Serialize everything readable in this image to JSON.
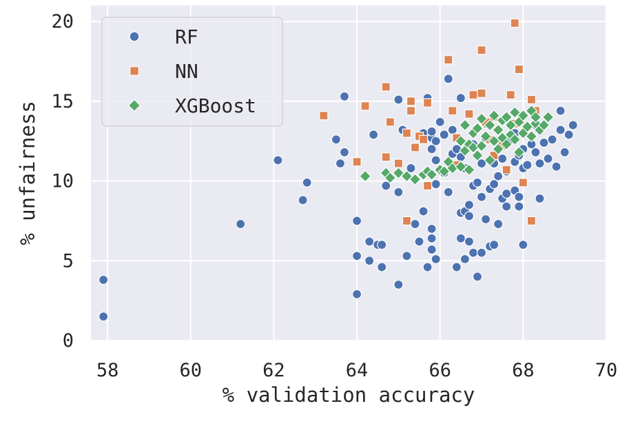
{
  "chart_data": {
    "type": "scatter",
    "xlabel": "% validation accuracy",
    "ylabel": "% unfairness",
    "xlim": [
      57.6,
      70
    ],
    "ylim": [
      0,
      21
    ],
    "xticks": [
      58,
      60,
      62,
      64,
      66,
      68,
      70
    ],
    "yticks": [
      0,
      5,
      10,
      15,
      20
    ],
    "grid": true,
    "legend_position": "top-left",
    "series": [
      {
        "name": "RF",
        "marker": "circle",
        "color": "#4c72b0",
        "points": [
          [
            57.9,
            3.8
          ],
          [
            57.9,
            1.5
          ],
          [
            61.2,
            7.3
          ],
          [
            62.1,
            11.3
          ],
          [
            62.8,
            9.9
          ],
          [
            62.7,
            8.8
          ],
          [
            63.5,
            12.6
          ],
          [
            63.6,
            11.1
          ],
          [
            63.7,
            15.3
          ],
          [
            63.7,
            11.8
          ],
          [
            64.0,
            7.5
          ],
          [
            64.0,
            5.3
          ],
          [
            64.0,
            2.9
          ],
          [
            64.3,
            6.2
          ],
          [
            64.3,
            5.0
          ],
          [
            64.4,
            12.9
          ],
          [
            64.5,
            6.0
          ],
          [
            64.6,
            4.6
          ],
          [
            64.6,
            6.0
          ],
          [
            64.7,
            9.7
          ],
          [
            65.0,
            3.5
          ],
          [
            65.0,
            9.3
          ],
          [
            65.0,
            15.1
          ],
          [
            65.1,
            13.2
          ],
          [
            65.2,
            5.3
          ],
          [
            65.2,
            7.5
          ],
          [
            65.3,
            10.8
          ],
          [
            65.4,
            7.3
          ],
          [
            65.5,
            6.2
          ],
          [
            65.6,
            8.1
          ],
          [
            65.6,
            13.0
          ],
          [
            65.7,
            15.2
          ],
          [
            65.7,
            4.6
          ],
          [
            65.8,
            5.7
          ],
          [
            65.8,
            6.4
          ],
          [
            65.8,
            7.0
          ],
          [
            65.8,
            12.0
          ],
          [
            65.8,
            12.7
          ],
          [
            65.8,
            13.1
          ],
          [
            65.9,
            5.1
          ],
          [
            65.9,
            9.8
          ],
          [
            65.9,
            11.3
          ],
          [
            65.9,
            12.5
          ],
          [
            66.0,
            13.7
          ],
          [
            66.1,
            10.5
          ],
          [
            66.1,
            12.9
          ],
          [
            66.2,
            16.4
          ],
          [
            66.2,
            9.3
          ],
          [
            66.3,
            11.7
          ],
          [
            66.3,
            13.2
          ],
          [
            66.4,
            4.6
          ],
          [
            66.4,
            12.0
          ],
          [
            66.5,
            6.4
          ],
          [
            66.5,
            8.0
          ],
          [
            66.5,
            15.2
          ],
          [
            66.5,
            11.5
          ],
          [
            66.6,
            5.1
          ],
          [
            66.6,
            8.1
          ],
          [
            66.6,
            10.8
          ],
          [
            66.7,
            6.2
          ],
          [
            66.7,
            7.8
          ],
          [
            66.7,
            8.5
          ],
          [
            66.8,
            5.5
          ],
          [
            66.8,
            9.7
          ],
          [
            66.8,
            12.3
          ],
          [
            66.9,
            4.0
          ],
          [
            66.9,
            9.9
          ],
          [
            66.9,
            13.3
          ],
          [
            67.0,
            5.5
          ],
          [
            67.0,
            9.0
          ],
          [
            67.0,
            11.1
          ],
          [
            67.1,
            7.6
          ],
          [
            67.1,
            12.7
          ],
          [
            67.1,
            13.6
          ],
          [
            67.2,
            5.9
          ],
          [
            67.2,
            9.5
          ],
          [
            67.3,
            6.0
          ],
          [
            67.3,
            9.8
          ],
          [
            67.3,
            11.1
          ],
          [
            67.4,
            7.3
          ],
          [
            67.4,
            10.3
          ],
          [
            67.5,
            8.9
          ],
          [
            67.5,
            11.4
          ],
          [
            67.5,
            13.8
          ],
          [
            67.6,
            8.4
          ],
          [
            67.6,
            9.2
          ],
          [
            67.6,
            10.6
          ],
          [
            67.7,
            12.6
          ],
          [
            67.8,
            9.4
          ],
          [
            67.8,
            11.2
          ],
          [
            67.8,
            13.0
          ],
          [
            67.9,
            8.4
          ],
          [
            67.9,
            9.0
          ],
          [
            67.9,
            11.6
          ],
          [
            68.0,
            6.0
          ],
          [
            68.0,
            10.8
          ],
          [
            68.0,
            12.0
          ],
          [
            68.1,
            11.0
          ],
          [
            68.2,
            12.3
          ],
          [
            68.3,
            11.8
          ],
          [
            68.3,
            13.5
          ],
          [
            68.4,
            8.9
          ],
          [
            68.4,
            11.1
          ],
          [
            68.5,
            12.4
          ],
          [
            68.6,
            11.4
          ],
          [
            68.7,
            12.6
          ],
          [
            68.8,
            10.9
          ],
          [
            68.9,
            13.2
          ],
          [
            68.9,
            14.4
          ],
          [
            69.0,
            11.8
          ],
          [
            69.1,
            12.9
          ],
          [
            69.2,
            13.5
          ]
        ]
      },
      {
        "name": "NN",
        "marker": "square",
        "color": "#dd8452",
        "points": [
          [
            63.2,
            14.1
          ],
          [
            64.0,
            11.2
          ],
          [
            64.2,
            14.7
          ],
          [
            64.7,
            15.9
          ],
          [
            64.7,
            11.5
          ],
          [
            64.8,
            13.7
          ],
          [
            65.0,
            11.1
          ],
          [
            65.2,
            7.5
          ],
          [
            65.2,
            13.0
          ],
          [
            65.3,
            14.4
          ],
          [
            65.3,
            15.0
          ],
          [
            65.4,
            12.1
          ],
          [
            65.5,
            12.8
          ],
          [
            65.6,
            12.6
          ],
          [
            65.7,
            14.9
          ],
          [
            65.7,
            9.7
          ],
          [
            66.2,
            17.6
          ],
          [
            66.3,
            14.4
          ],
          [
            66.4,
            11.0
          ],
          [
            66.4,
            12.7
          ],
          [
            66.7,
            14.2
          ],
          [
            66.8,
            15.4
          ],
          [
            67.0,
            18.2
          ],
          [
            67.0,
            15.5
          ],
          [
            67.1,
            13.7
          ],
          [
            67.2,
            12.6
          ],
          [
            67.3,
            11.6
          ],
          [
            67.3,
            14.0
          ],
          [
            67.5,
            12.2
          ],
          [
            67.6,
            10.7
          ],
          [
            67.7,
            15.4
          ],
          [
            67.8,
            19.9
          ],
          [
            67.8,
            13.6
          ],
          [
            67.9,
            17.0
          ],
          [
            68.0,
            9.9
          ],
          [
            68.1,
            13.4
          ],
          [
            68.2,
            7.5
          ],
          [
            68.2,
            15.1
          ],
          [
            68.3,
            14.4
          ]
        ]
      },
      {
        "name": "XGBoost",
        "marker": "diamond",
        "color": "#55a868",
        "points": [
          [
            64.2,
            10.3
          ],
          [
            64.7,
            10.5
          ],
          [
            64.8,
            10.2
          ],
          [
            65.0,
            10.5
          ],
          [
            65.2,
            10.3
          ],
          [
            65.4,
            10.1
          ],
          [
            65.6,
            10.4
          ],
          [
            65.7,
            10.6
          ],
          [
            65.8,
            10.4
          ],
          [
            66.0,
            10.7
          ],
          [
            66.1,
            10.6
          ],
          [
            66.2,
            11.2
          ],
          [
            66.3,
            10.8
          ],
          [
            66.5,
            10.9
          ],
          [
            66.5,
            12.5
          ],
          [
            66.6,
            11.9
          ],
          [
            66.6,
            13.5
          ],
          [
            66.7,
            10.7
          ],
          [
            66.7,
            12.3
          ],
          [
            66.8,
            12.1
          ],
          [
            66.8,
            13.0
          ],
          [
            66.9,
            11.6
          ],
          [
            66.9,
            13.3
          ],
          [
            67.0,
            12.2
          ],
          [
            67.0,
            13.9
          ],
          [
            67.1,
            12.8
          ],
          [
            67.2,
            11.3
          ],
          [
            67.2,
            13.5
          ],
          [
            67.3,
            12.5
          ],
          [
            67.3,
            14.1
          ],
          [
            67.4,
            12.0
          ],
          [
            67.4,
            13.2
          ],
          [
            67.5,
            12.7
          ],
          [
            67.5,
            13.8
          ],
          [
            67.6,
            12.3
          ],
          [
            67.6,
            14.0
          ],
          [
            67.7,
            12.9
          ],
          [
            67.7,
            13.5
          ],
          [
            67.8,
            12.6
          ],
          [
            67.8,
            14.3
          ],
          [
            67.9,
            11.8
          ],
          [
            67.9,
            13.7
          ],
          [
            68.0,
            13.0
          ],
          [
            68.0,
            14.1
          ],
          [
            68.1,
            13.4
          ],
          [
            68.2,
            12.8
          ],
          [
            68.2,
            14.4
          ],
          [
            68.3,
            13.6
          ],
          [
            68.3,
            14.0
          ],
          [
            68.4,
            13.2
          ],
          [
            68.5,
            13.5
          ],
          [
            68.6,
            14.0
          ]
        ]
      }
    ]
  }
}
